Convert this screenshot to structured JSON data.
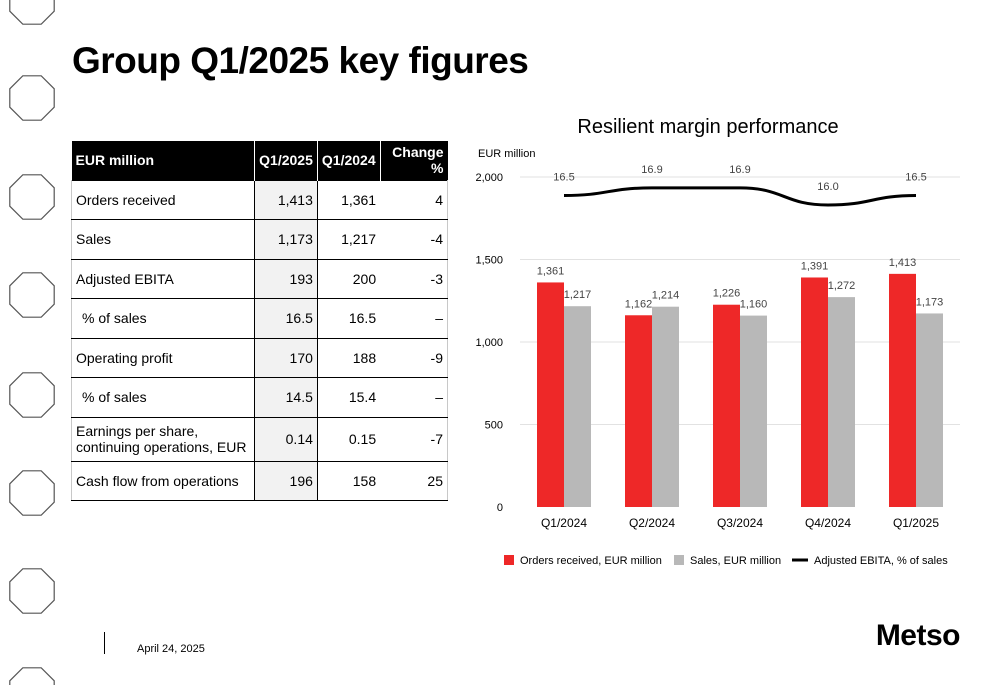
{
  "slide": {
    "title": "Group Q1/2025 key figures",
    "date": "April 24, 2025",
    "logo_text": "Metso"
  },
  "table": {
    "headers": [
      "EUR million",
      "Q1/2025",
      "Q1/2024",
      "Change %"
    ],
    "rows": [
      {
        "label": "Orders received",
        "q1_2025": "1,413",
        "q1_2024": "1,361",
        "change": "4"
      },
      {
        "label": "Sales",
        "q1_2025": "1,173",
        "q1_2024": "1,217",
        "change": "-4"
      },
      {
        "label": "Adjusted EBITA",
        "q1_2025": "193",
        "q1_2024": "200",
        "change": "-3"
      },
      {
        "label": "% of sales",
        "q1_2025": "16.5",
        "q1_2024": "16.5",
        "change": "–"
      },
      {
        "label": "Operating profit",
        "q1_2025": "170",
        "q1_2024": "188",
        "change": "-9"
      },
      {
        "label": "% of sales",
        "q1_2025": "14.5",
        "q1_2024": "15.4",
        "change": "–"
      },
      {
        "label": "Earnings per share, continuing operations, EUR",
        "q1_2025": "0.14",
        "q1_2024": "0.15",
        "change": "-7"
      },
      {
        "label": "Cash flow from operations",
        "q1_2025": "196",
        "q1_2024": "158",
        "change": "25"
      }
    ]
  },
  "chart_data": {
    "type": "bar",
    "title": "Resilient margin performance",
    "ylabel": "EUR million",
    "ylim": [
      0,
      2000
    ],
    "yticks": [
      0,
      500,
      1000,
      1500,
      2000
    ],
    "ytick_labels": [
      "0",
      "500",
      "1,000",
      "1,500",
      "2,000"
    ],
    "categories": [
      "Q1/2024",
      "Q2/2024",
      "Q3/2024",
      "Q4/2024",
      "Q1/2025"
    ],
    "grid": true,
    "legend_position": "bottom",
    "series": [
      {
        "name": "Orders received, EUR million",
        "type": "bar",
        "color": "#ee2828",
        "values": [
          1361,
          1162,
          1226,
          1391,
          1413
        ],
        "labels": [
          "1,361",
          "1,162",
          "1,226",
          "1,391",
          "1,413"
        ]
      },
      {
        "name": "Sales, EUR million",
        "type": "bar",
        "color": "#b8b8b8",
        "values": [
          1217,
          1214,
          1160,
          1272,
          1173
        ],
        "labels": [
          "1,217",
          "1,214",
          "1,160",
          "1,272",
          "1,173"
        ]
      },
      {
        "name": "Adjusted EBITA, % of sales",
        "type": "line",
        "color": "#000000",
        "values": [
          16.5,
          16.9,
          16.9,
          16.0,
          16.5
        ],
        "labels": [
          "16.5",
          "16.9",
          "16.9",
          "16.0",
          "16.5"
        ]
      }
    ]
  }
}
